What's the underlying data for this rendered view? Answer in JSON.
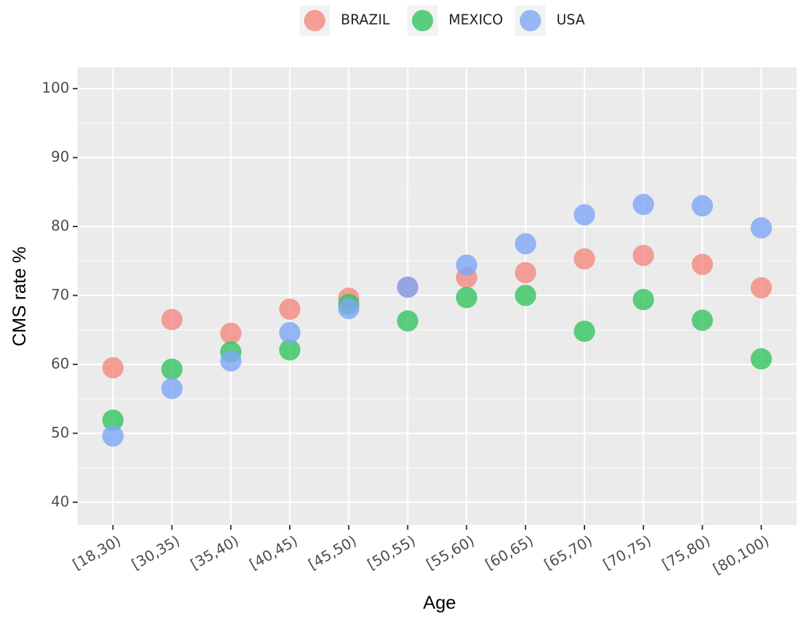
{
  "chart_data": {
    "type": "scatter",
    "x_label": "Age",
    "y_label": "CMS rate %",
    "categories": [
      "[18,30)",
      "[30,35)",
      "[35,40)",
      "[40,45)",
      "[45,50)",
      "[50,55)",
      "[55,60)",
      "[60,65)",
      "[65,70)",
      "[70,75)",
      "[75,80)",
      "[80,100)"
    ],
    "series": [
      {
        "name": "BRAZIL",
        "color": "#f28a80",
        "values": [
          59.5,
          66.5,
          64.5,
          68,
          69.6,
          71.2,
          72.6,
          73.3,
          75.3,
          75.8,
          74.5,
          71.1
        ]
      },
      {
        "name": "MEXICO",
        "color": "#35c45f",
        "values": [
          51.9,
          59.3,
          61.8,
          62.1,
          68.7,
          66.3,
          69.7,
          70,
          64.8,
          69.4,
          66.4,
          60.8
        ]
      },
      {
        "name": "USA",
        "color": "#7ea6f6",
        "values": [
          49.6,
          56.5,
          60.5,
          64.6,
          68.1,
          71.2,
          74.4,
          77.5,
          81.7,
          83.2,
          83,
          79.8
        ]
      }
    ],
    "ylim": [
      36.7,
      103.1
    ],
    "yticks": [
      40,
      50,
      60,
      70,
      80,
      90,
      100
    ],
    "grid": true,
    "legend": "top"
  }
}
